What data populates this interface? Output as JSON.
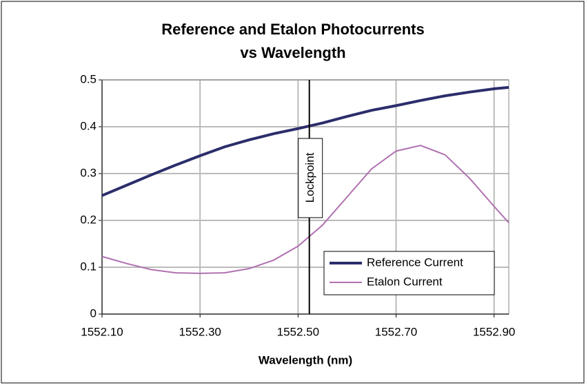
{
  "chart_data": {
    "type": "line",
    "title": [
      "Reference and Etalon Photocurrents",
      "vs Wavelength"
    ],
    "x_label": "Wavelength (nm)",
    "x": [
      1552.1,
      1552.15,
      1552.2,
      1552.25,
      1552.3,
      1552.35,
      1552.4,
      1552.45,
      1552.5,
      1552.55,
      1552.6,
      1552.65,
      1552.7,
      1552.75,
      1552.8,
      1552.85,
      1552.9,
      1552.93
    ],
    "series": [
      {
        "name": "Reference Current",
        "color": "#2b2d6b",
        "width": 4,
        "values": [
          0.253,
          0.275,
          0.297,
          0.318,
          0.338,
          0.357,
          0.372,
          0.385,
          0.396,
          0.408,
          0.422,
          0.435,
          0.445,
          0.456,
          0.466,
          0.474,
          0.481,
          0.484
        ]
      },
      {
        "name": "Etalon Current",
        "color": "#b070b0",
        "width": 2,
        "values": [
          0.123,
          0.108,
          0.095,
          0.088,
          0.087,
          0.088,
          0.097,
          0.115,
          0.145,
          0.19,
          0.25,
          0.31,
          0.348,
          0.36,
          0.34,
          0.29,
          0.23,
          0.195
        ]
      }
    ],
    "xlim": [
      1552.1,
      1552.93
    ],
    "xticks": [
      {
        "value": 1552.1,
        "label": "1552.10"
      },
      {
        "value": 1552.3,
        "label": "1552.30"
      },
      {
        "value": 1552.5,
        "label": "1552.50"
      },
      {
        "value": 1552.7,
        "label": "1552.70"
      },
      {
        "value": 1552.9,
        "label": "1552.90"
      }
    ],
    "ylim": [
      0,
      0.5
    ],
    "yticks": [
      0,
      0.1,
      0.2,
      0.3,
      0.4,
      0.5
    ],
    "grid": true,
    "legend": "lower right",
    "annotations": [
      {
        "text": "Lockpoint",
        "x": 1552.523
      }
    ]
  }
}
